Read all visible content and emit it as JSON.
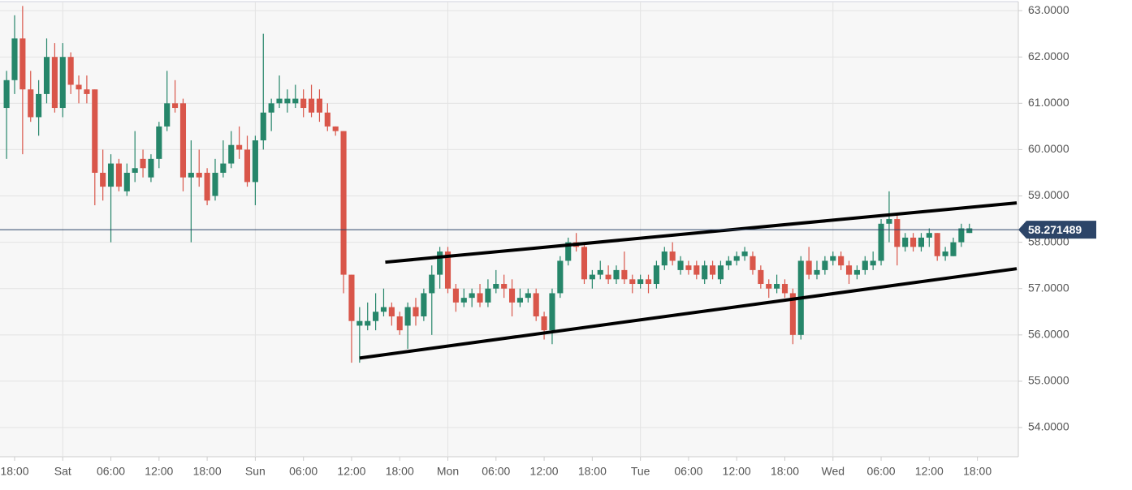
{
  "chart_data": {
    "type": "candlestick",
    "up_color": "#26866a",
    "down_color": "#d9564a",
    "x": [
      -1,
      0,
      1,
      2,
      3,
      4,
      5,
      6,
      7,
      8,
      9,
      10,
      11,
      12,
      13,
      14,
      15,
      16,
      17,
      18,
      19,
      20,
      21,
      22,
      23,
      24,
      25,
      26,
      27,
      28,
      29,
      30,
      31,
      32,
      33,
      34,
      35,
      36,
      37,
      38,
      39,
      40,
      41,
      42,
      43,
      44,
      45,
      46,
      47,
      48,
      49,
      50,
      51,
      52,
      53,
      54,
      55,
      56,
      57,
      58,
      59,
      60,
      61,
      62,
      63,
      64,
      65,
      66,
      67,
      68,
      69,
      70,
      71,
      72,
      73,
      74,
      75,
      76,
      77,
      78,
      79,
      80,
      81,
      82,
      83,
      84,
      85,
      86,
      87,
      88,
      89,
      90,
      91,
      92,
      93,
      94,
      95,
      96,
      97,
      98,
      99,
      100,
      101,
      102,
      103,
      104,
      105,
      106,
      107,
      108,
      109,
      110,
      111,
      112,
      113,
      114,
      115,
      116,
      117,
      118,
      119
    ],
    "open": [
      60.9,
      61.5,
      62.4,
      61.3,
      60.7,
      61.2,
      62.0,
      60.9,
      62.0,
      61.4,
      61.3,
      61.3,
      59.5,
      59.2,
      59.7,
      59.1,
      59.5,
      59.8,
      59.4,
      59.8,
      60.5,
      61.0,
      61.0,
      59.4,
      59.5,
      59.5,
      59.0,
      59.5,
      59.7,
      60.1,
      60.0,
      59.3,
      60.2,
      60.8,
      61.0,
      61.0,
      61.0,
      61.1,
      61.1,
      61.1,
      60.8,
      60.5,
      60.4,
      57.3,
      56.2,
      56.2,
      56.3,
      56.5,
      56.6,
      56.4,
      56.2,
      56.6,
      56.4,
      56.9,
      57.3,
      57.8,
      57.0,
      56.7,
      56.8,
      56.9,
      56.7,
      57.0,
      57.1,
      57.0,
      56.7,
      56.8,
      56.9,
      56.4,
      56.1,
      56.9,
      57.6,
      58.0,
      57.9,
      57.2,
      57.3,
      57.3,
      57.2,
      57.4,
      57.2,
      57.1,
      57.2,
      57.1,
      57.5,
      57.8,
      57.4,
      57.5,
      57.5,
      57.2,
      57.5,
      57.2,
      57.5,
      57.6,
      57.7,
      57.7,
      57.4,
      57.1,
      57.0,
      57.1,
      56.9,
      56.0,
      57.6,
      57.3,
      57.4,
      57.6,
      57.7,
      57.5,
      57.3,
      57.4,
      57.5,
      57.6,
      58.4,
      58.5,
      57.9,
      58.1,
      57.9,
      58.1,
      58.2,
      57.7,
      57.7,
      58.0,
      58.2
    ],
    "high": [
      61.7,
      62.9,
      63.1,
      61.7,
      61.5,
      62.4,
      62.3,
      62.3,
      62.1,
      61.6,
      61.6,
      61.3,
      60.0,
      59.9,
      59.8,
      59.7,
      60.4,
      60.0,
      59.9,
      60.6,
      61.7,
      61.5,
      61.1,
      60.2,
      60.0,
      59.6,
      59.8,
      60.2,
      60.4,
      60.5,
      60.3,
      60.3,
      62.5,
      61.1,
      61.6,
      61.3,
      61.4,
      61.3,
      61.4,
      61.3,
      61.0,
      60.5,
      60.4,
      57.3,
      56.6,
      56.7,
      56.9,
      57.0,
      56.7,
      56.5,
      56.7,
      56.8,
      57.0,
      57.5,
      57.9,
      57.9,
      57.1,
      57.0,
      57.0,
      57.1,
      57.2,
      57.4,
      57.3,
      57.2,
      57.0,
      57.0,
      57.0,
      56.5,
      57.0,
      57.7,
      58.1,
      58.2,
      58.0,
      57.4,
      57.6,
      57.5,
      57.5,
      57.8,
      57.3,
      57.3,
      57.3,
      57.6,
      57.9,
      58.0,
      57.7,
      57.6,
      57.6,
      57.6,
      57.6,
      57.6,
      57.7,
      57.8,
      57.9,
      57.8,
      57.5,
      57.2,
      57.3,
      57.2,
      57.0,
      57.7,
      57.9,
      57.6,
      57.7,
      57.8,
      57.8,
      57.6,
      57.5,
      57.7,
      57.8,
      58.5,
      59.1,
      58.6,
      58.2,
      58.2,
      58.2,
      58.3,
      58.2,
      57.9,
      58.1,
      58.4,
      58.4
    ],
    "low": [
      59.8,
      61.2,
      59.9,
      60.6,
      60.3,
      61.0,
      60.8,
      60.7,
      61.2,
      61.0,
      61.0,
      58.8,
      58.9,
      58.0,
      59.1,
      59.0,
      59.3,
      59.4,
      59.3,
      59.6,
      60.4,
      60.8,
      59.1,
      58.0,
      59.2,
      58.8,
      58.9,
      59.4,
      59.6,
      59.8,
      59.2,
      58.8,
      60.0,
      60.4,
      60.9,
      60.8,
      60.9,
      60.7,
      60.7,
      60.6,
      60.4,
      60.3,
      56.9,
      55.4,
      55.4,
      56.1,
      56.1,
      56.4,
      56.2,
      56.0,
      55.7,
      56.2,
      56.3,
      56.0,
      57.0,
      56.9,
      56.5,
      56.6,
      56.6,
      56.6,
      56.6,
      56.9,
      56.8,
      56.4,
      56.6,
      56.7,
      56.3,
      55.9,
      55.8,
      56.8,
      57.5,
      57.8,
      57.1,
      57.0,
      57.2,
      57.1,
      57.1,
      57.1,
      56.9,
      57.0,
      56.9,
      57.0,
      57.4,
      57.5,
      57.3,
      57.3,
      57.2,
      57.1,
      57.2,
      57.1,
      57.4,
      57.5,
      57.6,
      57.3,
      57.0,
      56.8,
      56.9,
      56.8,
      55.8,
      55.9,
      57.2,
      57.2,
      57.3,
      57.5,
      57.4,
      57.1,
      57.2,
      57.3,
      57.4,
      57.5,
      58.0,
      57.5,
      57.8,
      57.8,
      57.8,
      57.9,
      57.6,
      57.6,
      57.7,
      57.9,
      58.2
    ],
    "close": [
      61.5,
      62.4,
      61.3,
      60.7,
      61.2,
      62.0,
      60.9,
      62.0,
      61.4,
      61.3,
      61.2,
      59.5,
      59.2,
      59.7,
      59.2,
      59.5,
      59.6,
      59.6,
      59.8,
      60.5,
      61.0,
      60.9,
      59.4,
      59.5,
      59.4,
      58.9,
      59.5,
      59.7,
      60.1,
      60.0,
      59.3,
      60.2,
      60.8,
      61.0,
      61.1,
      61.1,
      61.1,
      60.9,
      60.8,
      60.8,
      60.5,
      60.4,
      57.3,
      56.3,
      56.3,
      56.3,
      56.5,
      56.6,
      56.4,
      56.1,
      56.6,
      56.4,
      56.9,
      57.3,
      57.8,
      57.0,
      56.7,
      56.8,
      56.9,
      56.7,
      57.0,
      57.1,
      57.0,
      56.7,
      56.8,
      56.9,
      56.4,
      56.1,
      56.9,
      57.6,
      58.0,
      57.9,
      57.2,
      57.3,
      57.4,
      57.2,
      57.4,
      57.2,
      57.1,
      57.2,
      57.1,
      57.5,
      57.8,
      57.6,
      57.6,
      57.4,
      57.3,
      57.5,
      57.3,
      57.5,
      57.6,
      57.7,
      57.8,
      57.4,
      57.1,
      57.0,
      57.1,
      56.9,
      56.0,
      57.6,
      57.3,
      57.4,
      57.6,
      57.7,
      57.5,
      57.3,
      57.4,
      57.6,
      57.6,
      58.4,
      58.5,
      57.9,
      58.1,
      57.9,
      58.1,
      58.2,
      57.7,
      57.8,
      58.0,
      58.3,
      58.3
    ],
    "last_price": 58.271489,
    "last_price_color": "#2c4568",
    "trend_lines": [
      {
        "x": [
          46.2,
          124.9
        ],
        "y": [
          57.57,
          58.85
        ]
      },
      {
        "x": [
          43,
          124.9
        ],
        "y": [
          55.5,
          57.43
        ]
      }
    ],
    "xlim": [
      -1.82,
      125.1
    ],
    "ylim": [
      53.37,
      63.23
    ],
    "xticks": [
      {
        "value": 0,
        "label": "18:00"
      },
      {
        "value": 6,
        "label": "Sat"
      },
      {
        "value": 12,
        "label": "06:00"
      },
      {
        "value": 18,
        "label": "12:00"
      },
      {
        "value": 24,
        "label": "18:00"
      },
      {
        "value": 30,
        "label": "Sun"
      },
      {
        "value": 36,
        "label": "06:00"
      },
      {
        "value": 42,
        "label": "12:00"
      },
      {
        "value": 48,
        "label": "18:00"
      },
      {
        "value": 54,
        "label": "Mon"
      },
      {
        "value": 60,
        "label": "06:00"
      },
      {
        "value": 66,
        "label": "12:00"
      },
      {
        "value": 72,
        "label": "18:00"
      },
      {
        "value": 78,
        "label": "Tue"
      },
      {
        "value": 84,
        "label": "06:00"
      },
      {
        "value": 90,
        "label": "12:00"
      },
      {
        "value": 96,
        "label": "18:00"
      },
      {
        "value": 102,
        "label": "Wed"
      },
      {
        "value": 108,
        "label": "06:00"
      },
      {
        "value": 114,
        "label": "12:00"
      },
      {
        "value": 120,
        "label": "18:00"
      }
    ],
    "yticks": [
      {
        "value": 54,
        "label": "54.0000"
      },
      {
        "value": 55,
        "label": "55.0000"
      },
      {
        "value": 56,
        "label": "56.0000"
      },
      {
        "value": 57,
        "label": "57.0000"
      },
      {
        "value": 58,
        "label": "58.0000"
      },
      {
        "value": 59,
        "label": "59.0000"
      },
      {
        "value": 60,
        "label": "60.0000"
      },
      {
        "value": 61,
        "label": "61.0000"
      },
      {
        "value": 62,
        "label": "62.0000"
      },
      {
        "value": 63,
        "label": "63.0000"
      }
    ],
    "grid": true
  }
}
